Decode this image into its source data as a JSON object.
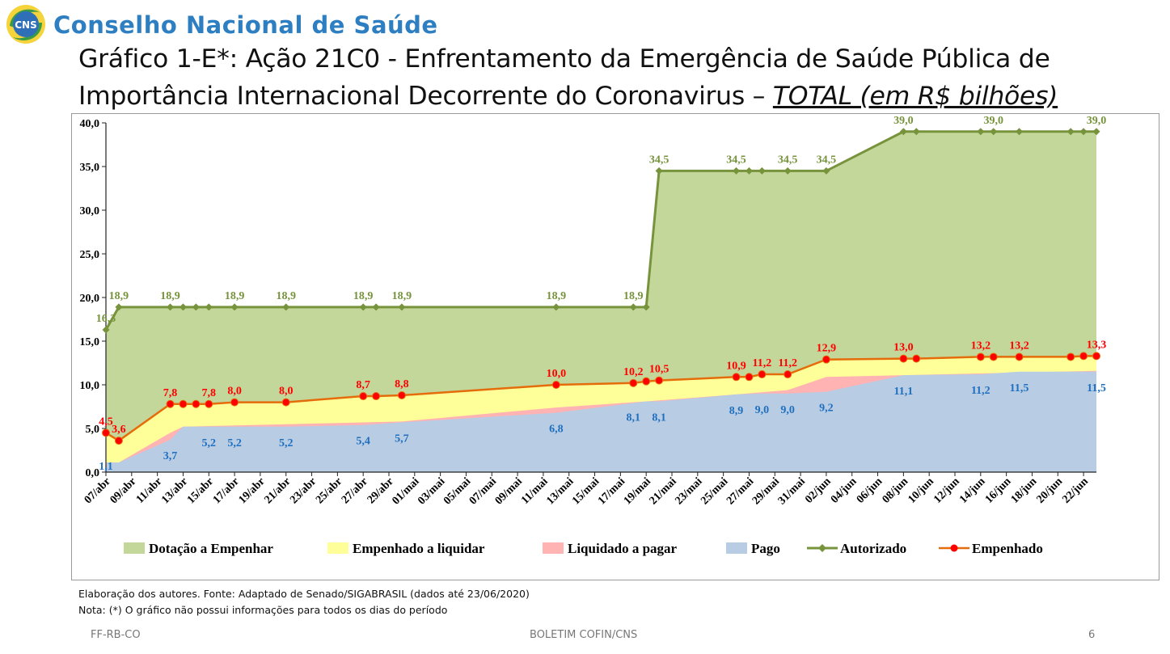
{
  "header": {
    "logo_text": "CNS",
    "org_name": "Conselho Nacional de Saúde",
    "title_main": "Gráfico 1-E*: Ação 21C0 - Enfrentamento da Emergência de Saúde Pública de Importância Internacional Decorrente do Coronavirus –",
    "title_highlight": "TOTAL (em R$ bilhões)"
  },
  "notes": {
    "source": "Elaboração dos autores. Fonte: Adaptado de Senado/SIGABRASIL (dados até 23/06/2020)",
    "note": "Nota: (*) O gráfico não possui informações para todos os dias do período"
  },
  "footer": {
    "left": "FF-RB-CO",
    "center": "BOLETIM COFIN/CNS",
    "page": "6"
  },
  "colors": {
    "dotacao": "#c4d79b",
    "empenhado_liquidar": "#ffff99",
    "liquidado_pagar": "#ffb3b3",
    "pago": "#b8cce4",
    "autorizado": "#77933c",
    "empenhado_line": "#e46c0a",
    "empenhado_marker": "#ff0000",
    "label_green": "#77933c",
    "label_red": "#ff0000",
    "label_blue": "#1f6fbf"
  },
  "chart_data": {
    "type": "area",
    "ylim": [
      0,
      40
    ],
    "yticks": [
      "0,0",
      "5,0",
      "10,0",
      "15,0",
      "20,0",
      "25,0",
      "30,0",
      "35,0",
      "40,0"
    ],
    "date_start": "2020-04-07",
    "date_end": "2020-06-23",
    "xticks": [
      "07/abr",
      "09/abr",
      "11/abr",
      "13/abr",
      "15/abr",
      "17/abr",
      "19/abr",
      "21/abr",
      "23/abr",
      "25/abr",
      "27/abr",
      "29/abr",
      "01/mai",
      "03/mai",
      "05/mai",
      "07/mai",
      "09/mai",
      "11/mai",
      "13/mai",
      "15/mai",
      "17/mai",
      "19/mai",
      "21/mai",
      "23/mai",
      "25/mai",
      "27/mai",
      "29/mai",
      "31/mai",
      "02/jun",
      "04/jun",
      "06/jun",
      "08/jun",
      "10/jun",
      "12/jun",
      "14/jun",
      "16/jun",
      "18/jun",
      "20/jun",
      "22/jun"
    ],
    "legend": [
      "Dotação a Empenhar",
      "Empenhado a liquidar",
      "Liquidado a pagar",
      "Pago",
      "Autorizado",
      "Empenhado"
    ],
    "legend_position": "bottom",
    "autorizado": [
      [
        "2020-04-07",
        16.3
      ],
      [
        "2020-04-08",
        18.9
      ],
      [
        "2020-04-12",
        18.9
      ],
      [
        "2020-04-13",
        18.9
      ],
      [
        "2020-04-14",
        18.9
      ],
      [
        "2020-04-15",
        18.9
      ],
      [
        "2020-04-17",
        18.9
      ],
      [
        "2020-04-21",
        18.9
      ],
      [
        "2020-04-27",
        18.9
      ],
      [
        "2020-04-28",
        18.9
      ],
      [
        "2020-04-30",
        18.9
      ],
      [
        "2020-05-12",
        18.9
      ],
      [
        "2020-05-18",
        18.9
      ],
      [
        "2020-05-19",
        18.9
      ],
      [
        "2020-05-20",
        34.5
      ],
      [
        "2020-05-26",
        34.5
      ],
      [
        "2020-05-27",
        34.5
      ],
      [
        "2020-05-28",
        34.5
      ],
      [
        "2020-05-30",
        34.5
      ],
      [
        "2020-06-02",
        34.5
      ],
      [
        "2020-06-08",
        39.0
      ],
      [
        "2020-06-09",
        39.0
      ],
      [
        "2020-06-14",
        39.0
      ],
      [
        "2020-06-15",
        39.0
      ],
      [
        "2020-06-17",
        39.0
      ],
      [
        "2020-06-21",
        39.0
      ],
      [
        "2020-06-22",
        39.0
      ],
      [
        "2020-06-23",
        39.0
      ]
    ],
    "empenhado": [
      [
        "2020-04-07",
        4.5
      ],
      [
        "2020-04-08",
        3.6
      ],
      [
        "2020-04-12",
        7.8
      ],
      [
        "2020-04-13",
        7.8
      ],
      [
        "2020-04-14",
        7.8
      ],
      [
        "2020-04-15",
        7.8
      ],
      [
        "2020-04-17",
        8.0
      ],
      [
        "2020-04-21",
        8.0
      ],
      [
        "2020-04-27",
        8.7
      ],
      [
        "2020-04-28",
        8.7
      ],
      [
        "2020-04-30",
        8.8
      ],
      [
        "2020-05-12",
        10.0
      ],
      [
        "2020-05-18",
        10.2
      ],
      [
        "2020-05-19",
        10.4
      ],
      [
        "2020-05-20",
        10.5
      ],
      [
        "2020-05-26",
        10.9
      ],
      [
        "2020-05-27",
        10.9
      ],
      [
        "2020-05-28",
        11.2
      ],
      [
        "2020-05-30",
        11.2
      ],
      [
        "2020-06-02",
        12.9
      ],
      [
        "2020-06-08",
        13.0
      ],
      [
        "2020-06-09",
        13.0
      ],
      [
        "2020-06-14",
        13.2
      ],
      [
        "2020-06-15",
        13.2
      ],
      [
        "2020-06-17",
        13.2
      ],
      [
        "2020-06-21",
        13.2
      ],
      [
        "2020-06-22",
        13.3
      ],
      [
        "2020-06-23",
        13.3
      ]
    ],
    "liquidado": [
      [
        "2020-04-07",
        1.1
      ],
      [
        "2020-04-08",
        1.1
      ],
      [
        "2020-04-12",
        4.5
      ],
      [
        "2020-04-13",
        5.2
      ],
      [
        "2020-04-30",
        5.8
      ],
      [
        "2020-05-12",
        7.4
      ],
      [
        "2020-05-19",
        8.1
      ],
      [
        "2020-05-26",
        8.9
      ],
      [
        "2020-05-30",
        9.4
      ],
      [
        "2020-06-02",
        10.9
      ],
      [
        "2020-06-08",
        11.1
      ],
      [
        "2020-06-23",
        11.6
      ]
    ],
    "pago": [
      [
        "2020-04-07",
        1.1
      ],
      [
        "2020-04-08",
        1.1
      ],
      [
        "2020-04-12",
        3.7
      ],
      [
        "2020-04-13",
        5.2
      ],
      [
        "2020-04-17",
        5.2
      ],
      [
        "2020-04-21",
        5.2
      ],
      [
        "2020-04-27",
        5.4
      ],
      [
        "2020-04-30",
        5.7
      ],
      [
        "2020-05-12",
        6.8
      ],
      [
        "2020-05-19",
        8.1
      ],
      [
        "2020-05-20",
        8.1
      ],
      [
        "2020-05-26",
        8.9
      ],
      [
        "2020-05-28",
        9.0
      ],
      [
        "2020-05-30",
        9.0
      ],
      [
        "2020-06-02",
        9.2
      ],
      [
        "2020-06-08",
        11.1
      ],
      [
        "2020-06-14",
        11.2
      ],
      [
        "2020-06-17",
        11.5
      ],
      [
        "2020-06-23",
        11.5
      ]
    ],
    "labels_autorizado": [
      [
        "2020-04-07",
        16.3,
        "16,3"
      ],
      [
        "2020-04-08",
        18.9,
        "18,9"
      ],
      [
        "2020-04-12",
        18.9,
        "18,9"
      ],
      [
        "2020-04-17",
        18.9,
        "18,9"
      ],
      [
        "2020-04-21",
        18.9,
        "18,9"
      ],
      [
        "2020-04-27",
        18.9,
        "18,9"
      ],
      [
        "2020-04-30",
        18.9,
        "18,9"
      ],
      [
        "2020-05-12",
        18.9,
        "18,9"
      ],
      [
        "2020-05-18",
        18.9,
        "18,9"
      ],
      [
        "2020-05-20",
        34.5,
        "34,5"
      ],
      [
        "2020-05-26",
        34.5,
        "34,5"
      ],
      [
        "2020-05-30",
        34.5,
        "34,5"
      ],
      [
        "2020-06-02",
        34.5,
        "34,5"
      ],
      [
        "2020-06-08",
        39.0,
        "39,0"
      ],
      [
        "2020-06-15",
        39.0,
        "39,0"
      ],
      [
        "2020-06-23",
        39.0,
        "39,0"
      ]
    ],
    "labels_empenhado": [
      [
        "2020-04-07",
        4.5,
        "4,5"
      ],
      [
        "2020-04-08",
        3.6,
        "3,6"
      ],
      [
        "2020-04-12",
        7.8,
        "7,8"
      ],
      [
        "2020-04-15",
        7.8,
        "7,8"
      ],
      [
        "2020-04-17",
        8.0,
        "8,0"
      ],
      [
        "2020-04-21",
        8.0,
        "8,0"
      ],
      [
        "2020-04-27",
        8.7,
        "8,7"
      ],
      [
        "2020-04-30",
        8.8,
        "8,8"
      ],
      [
        "2020-05-12",
        10.0,
        "10,0"
      ],
      [
        "2020-05-18",
        10.2,
        "10,2"
      ],
      [
        "2020-05-20",
        10.5,
        "10,5"
      ],
      [
        "2020-05-26",
        10.9,
        "10,9"
      ],
      [
        "2020-05-28",
        11.2,
        "11,2"
      ],
      [
        "2020-05-30",
        11.2,
        "11,2"
      ],
      [
        "2020-06-02",
        12.9,
        "12,9"
      ],
      [
        "2020-06-08",
        13.0,
        "13,0"
      ],
      [
        "2020-06-14",
        13.2,
        "13,2"
      ],
      [
        "2020-06-17",
        13.2,
        "13,2"
      ],
      [
        "2020-06-23",
        13.3,
        "13,3"
      ]
    ],
    "labels_pago": [
      [
        "2020-04-07",
        1.1,
        "1,1"
      ],
      [
        "2020-04-12",
        3.7,
        "3,7"
      ],
      [
        "2020-04-15",
        5.2,
        "5,2"
      ],
      [
        "2020-04-17",
        5.2,
        "5,2"
      ],
      [
        "2020-04-21",
        5.2,
        "5,2"
      ],
      [
        "2020-04-27",
        5.4,
        "5,4"
      ],
      [
        "2020-04-30",
        5.7,
        "5,7"
      ],
      [
        "2020-05-12",
        6.8,
        "6,8"
      ],
      [
        "2020-05-18",
        8.1,
        "8,1"
      ],
      [
        "2020-05-20",
        8.1,
        "8,1"
      ],
      [
        "2020-05-26",
        8.9,
        "8,9"
      ],
      [
        "2020-05-28",
        9.0,
        "9,0"
      ],
      [
        "2020-05-30",
        9.0,
        "9,0"
      ],
      [
        "2020-06-02",
        9.2,
        "9,2"
      ],
      [
        "2020-06-08",
        11.1,
        "11,1"
      ],
      [
        "2020-06-14",
        11.2,
        "11,2"
      ],
      [
        "2020-06-17",
        11.5,
        "11,5"
      ],
      [
        "2020-06-23",
        11.5,
        "11,5"
      ]
    ]
  }
}
